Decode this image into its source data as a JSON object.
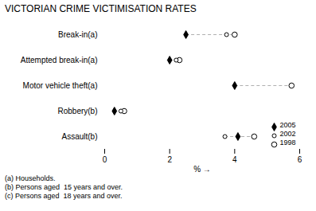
{
  "chart_data": {
    "type": "dot",
    "title": "VICTORIAN CRIME VICTIMISATION RATES",
    "categories": [
      "Break-in(a)",
      "Attempted break-in(a)",
      "Motor vehicle theft(a)",
      "Robbery(b)",
      "Assault(b)"
    ],
    "series": [
      {
        "name": "2005",
        "color": "black",
        "marker": "diamond",
        "values": [
          2.5,
          2.0,
          4.0,
          0.3,
          4.1
        ]
      },
      {
        "name": "2002",
        "color": "black",
        "marker": "open circle",
        "values": [
          3.75,
          2.2,
          null,
          0.5,
          3.7
        ]
      },
      {
        "name": "1998",
        "color": "black",
        "marker": "open circle",
        "values": [
          4.0,
          2.3,
          5.75,
          0.6,
          4.6
        ]
      }
    ],
    "xlabel": "%",
    "xlim": [
      0,
      6
    ],
    "xticks": [
      0,
      2,
      4,
      6
    ],
    "line_style": "dashed",
    "legend": "lower right",
    "grid": false,
    "annotations": [
      "(a) Households.",
      "(b) Persons aged  15 years and over.",
      "(c) Persons aged  18 years and over."
    ]
  }
}
